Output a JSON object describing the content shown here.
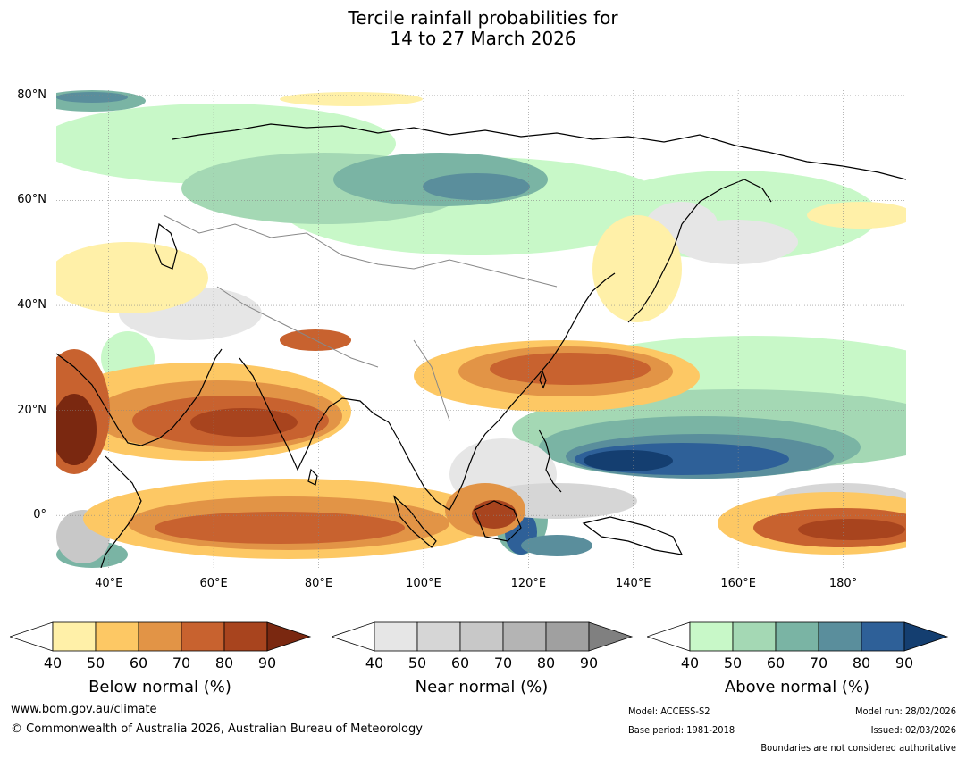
{
  "title": {
    "line1": "Tercile rainfall probabilities for",
    "line2": "14 to 27 March 2026"
  },
  "map": {
    "lat_labels": [
      "80°N",
      "60°N",
      "40°N",
      "20°N",
      "0°"
    ],
    "lon_labels": [
      "40°E",
      "60°E",
      "80°E",
      "100°E",
      "120°E",
      "140°E",
      "160°E",
      "180°"
    ],
    "colors": {
      "below": [
        "#fff0a8",
        "#fdc864",
        "#e29446",
        "#c8622f",
        "#a8441e",
        "#7a2810"
      ],
      "near": [
        "#e6e6e6",
        "#d6d6d6",
        "#c8c8c8",
        "#b4b4b4",
        "#a0a0a0",
        "#808080"
      ],
      "above": [
        "#c8f8c8",
        "#a4d8b4",
        "#7ab4a4",
        "#5a8e9c",
        "#2e6098",
        "#143e70"
      ]
    }
  },
  "legends": [
    {
      "title": "Below normal (%)",
      "ticks": [
        "40",
        "50",
        "60",
        "70",
        "80",
        "90"
      ]
    },
    {
      "title": "Near normal (%)",
      "ticks": [
        "40",
        "50",
        "60",
        "70",
        "80",
        "90"
      ]
    },
    {
      "title": "Above normal (%)",
      "ticks": [
        "40",
        "50",
        "60",
        "70",
        "80",
        "90"
      ]
    }
  ],
  "footer": {
    "website": "www.bom.gov.au/climate",
    "copyright": "© Commonwealth of Australia 2026, Australian Bureau of Meteorology",
    "model": "Model: ACCESS-S2",
    "base_period": "Base period: 1981-2018",
    "model_run": "Model run: 28/02/2026",
    "issued": "Issued: 02/03/2026",
    "boundaries": "Boundaries are not considered authoritative"
  }
}
